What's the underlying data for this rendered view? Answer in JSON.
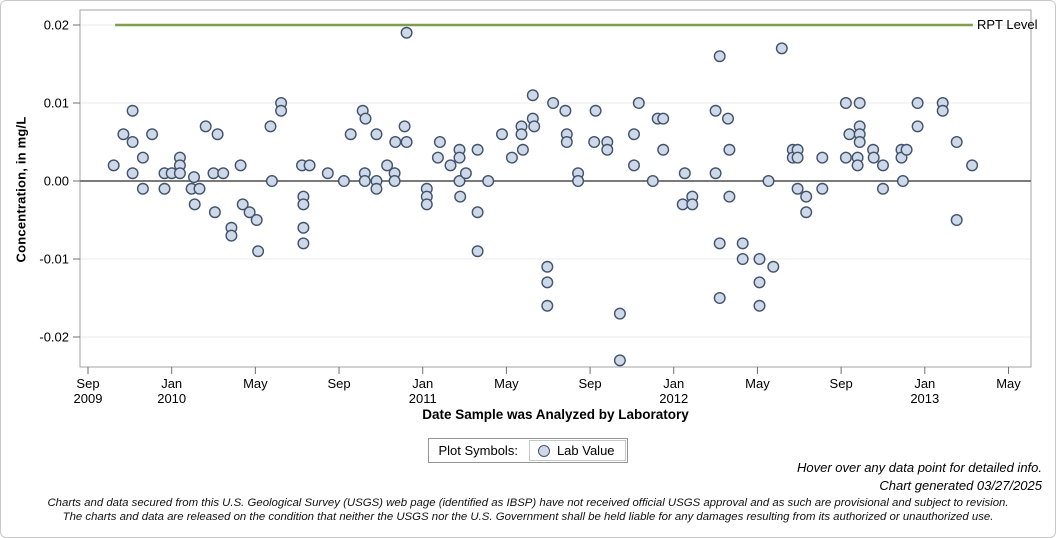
{
  "chart_data": {
    "type": "scatter",
    "title": "",
    "xlabel": "Date Sample was Analyzed by Laboratory",
    "ylabel": "Concentration, in mg/L",
    "ylim": [
      -0.024,
      0.022
    ],
    "x_domain": [
      "2009-08-20",
      "2013-06-01"
    ],
    "grid": "horizontal-light",
    "legend_position": "bottom-center",
    "yticks": [
      {
        "v": 0.02,
        "label": "0.02"
      },
      {
        "v": 0.01,
        "label": "0.01"
      },
      {
        "v": 0.0,
        "label": "0.00"
      },
      {
        "v": -0.01,
        "label": "-0.01"
      },
      {
        "v": -0.02,
        "label": "-0.02"
      }
    ],
    "xticks": [
      {
        "m": 0,
        "line1": "Sep",
        "line2": "2009"
      },
      {
        "m": 4,
        "line1": "Jan",
        "line2": "2010"
      },
      {
        "m": 8,
        "line1": "May",
        "line2": ""
      },
      {
        "m": 12,
        "line1": "Sep",
        "line2": ""
      },
      {
        "m": 16,
        "line1": "Jan",
        "line2": "2011"
      },
      {
        "m": 20,
        "line1": "May",
        "line2": ""
      },
      {
        "m": 24,
        "line1": "Sep",
        "line2": ""
      },
      {
        "m": 28,
        "line1": "Jan",
        "line2": "2012"
      },
      {
        "m": 32,
        "line1": "May",
        "line2": ""
      },
      {
        "m": 36,
        "line1": "Sep",
        "line2": ""
      },
      {
        "m": 40,
        "line1": "Jan",
        "line2": "2013"
      },
      {
        "m": 44,
        "line1": "May",
        "line2": ""
      }
    ],
    "rpt": {
      "value": 0.02,
      "label": "RPT Level",
      "start": "2009-10-10",
      "end": "2013-03-10",
      "color": "#7d9e4d"
    },
    "zero_line": {
      "value": 0.0,
      "color": "#7a7a7a"
    },
    "marker": {
      "shape": "circle",
      "fill": "#cdd9e9",
      "stroke": "#43526b"
    },
    "series": [
      {
        "name": "Lab Value",
        "points": [
          [
            "2009-10-08",
            0.002
          ],
          [
            "2009-10-22",
            0.006
          ],
          [
            "2009-11-05",
            0.009
          ],
          [
            "2009-11-05",
            0.005
          ],
          [
            "2009-11-05",
            0.001
          ],
          [
            "2009-11-20",
            0.003
          ],
          [
            "2009-11-20",
            -0.001
          ],
          [
            "2009-12-03",
            0.006
          ],
          [
            "2009-12-21",
            0.001
          ],
          [
            "2009-12-21",
            -0.001
          ],
          [
            "2010-01-01",
            0.001
          ],
          [
            "2010-01-13",
            0.003
          ],
          [
            "2010-01-13",
            0.002
          ],
          [
            "2010-01-13",
            0.001
          ],
          [
            "2010-01-30",
            -0.001
          ],
          [
            "2010-02-03",
            0.0005
          ],
          [
            "2010-02-04",
            -0.003
          ],
          [
            "2010-02-11",
            -0.001
          ],
          [
            "2010-02-20",
            0.007
          ],
          [
            "2010-03-01",
            0.001
          ],
          [
            "2010-03-03",
            -0.004
          ],
          [
            "2010-03-07",
            0.006
          ],
          [
            "2010-03-15",
            0.001
          ],
          [
            "2010-03-27",
            -0.006
          ],
          [
            "2010-03-27",
            -0.007
          ],
          [
            "2010-04-10",
            0.002
          ],
          [
            "2010-04-13",
            -0.003
          ],
          [
            "2010-04-23",
            -0.004
          ],
          [
            "2010-05-03",
            -0.005
          ],
          [
            "2010-05-05",
            -0.009
          ],
          [
            "2010-05-23",
            0.007
          ],
          [
            "2010-05-25",
            0.0
          ],
          [
            "2010-06-08",
            0.01
          ],
          [
            "2010-06-08",
            0.009
          ],
          [
            "2010-07-08",
            0.002
          ],
          [
            "2010-07-10",
            -0.002
          ],
          [
            "2010-07-10",
            -0.003
          ],
          [
            "2010-07-10",
            -0.006
          ],
          [
            "2010-07-10",
            -0.008
          ],
          [
            "2010-07-19",
            0.002
          ],
          [
            "2010-08-15",
            0.001
          ],
          [
            "2010-09-08",
            0.0
          ],
          [
            "2010-09-18",
            0.006
          ],
          [
            "2010-10-05",
            0.009
          ],
          [
            "2010-10-08",
            0.001
          ],
          [
            "2010-10-08",
            0.0
          ],
          [
            "2010-10-09",
            0.008
          ],
          [
            "2010-10-25",
            0.006
          ],
          [
            "2010-10-25",
            0.0
          ],
          [
            "2010-10-25",
            -0.001
          ],
          [
            "2010-11-10",
            0.002
          ],
          [
            "2010-11-21",
            0.001
          ],
          [
            "2010-11-21",
            0.0
          ],
          [
            "2010-11-22",
            0.005
          ],
          [
            "2010-12-05",
            0.007
          ],
          [
            "2010-12-08",
            0.019
          ],
          [
            "2010-12-08",
            0.005
          ],
          [
            "2011-01-07",
            -0.001
          ],
          [
            "2011-01-07",
            -0.002
          ],
          [
            "2011-01-07",
            -0.003
          ],
          [
            "2011-01-23",
            0.003
          ],
          [
            "2011-01-26",
            0.005
          ],
          [
            "2011-02-11",
            0.002
          ],
          [
            "2011-02-24",
            0.004
          ],
          [
            "2011-02-24",
            0.003
          ],
          [
            "2011-02-24",
            0.0
          ],
          [
            "2011-02-25",
            -0.002
          ],
          [
            "2011-03-03",
            0.001
          ],
          [
            "2011-03-20",
            0.004
          ],
          [
            "2011-03-20",
            -0.004
          ],
          [
            "2011-03-20",
            -0.009
          ],
          [
            "2011-04-05",
            0.0
          ],
          [
            "2011-04-25",
            0.006
          ],
          [
            "2011-05-09",
            0.003
          ],
          [
            "2011-05-23",
            0.007
          ],
          [
            "2011-05-23",
            0.006
          ],
          [
            "2011-05-25",
            0.004
          ],
          [
            "2011-06-09",
            0.011
          ],
          [
            "2011-06-09",
            0.008
          ],
          [
            "2011-06-11",
            0.007
          ],
          [
            "2011-06-30",
            -0.011
          ],
          [
            "2011-06-30",
            -0.013
          ],
          [
            "2011-06-30",
            -0.016
          ],
          [
            "2011-07-08",
            0.01
          ],
          [
            "2011-07-26",
            0.009
          ],
          [
            "2011-07-28",
            0.006
          ],
          [
            "2011-07-28",
            0.005
          ],
          [
            "2011-08-14",
            0.001
          ],
          [
            "2011-08-14",
            0.0
          ],
          [
            "2011-09-07",
            0.005
          ],
          [
            "2011-09-09",
            0.009
          ],
          [
            "2011-09-26",
            0.005
          ],
          [
            "2011-09-26",
            0.004
          ],
          [
            "2011-10-14",
            -0.017
          ],
          [
            "2011-10-14",
            -0.023
          ],
          [
            "2011-11-04",
            0.006
          ],
          [
            "2011-11-04",
            0.002
          ],
          [
            "2011-11-11",
            0.01
          ],
          [
            "2011-12-01",
            0.0
          ],
          [
            "2011-12-08",
            0.008
          ],
          [
            "2011-12-16",
            0.008
          ],
          [
            "2011-12-16",
            0.004
          ],
          [
            "2012-01-14",
            -0.003
          ],
          [
            "2012-01-17",
            0.001
          ],
          [
            "2012-01-28",
            -0.002
          ],
          [
            "2012-01-28",
            -0.003
          ],
          [
            "2012-03-01",
            0.009
          ],
          [
            "2012-03-01",
            0.001
          ],
          [
            "2012-03-07",
            0.016
          ],
          [
            "2012-03-07",
            -0.008
          ],
          [
            "2012-03-07",
            -0.015
          ],
          [
            "2012-03-19",
            0.008
          ],
          [
            "2012-03-21",
            0.004
          ],
          [
            "2012-03-21",
            -0.002
          ],
          [
            "2012-04-10",
            -0.008
          ],
          [
            "2012-04-10",
            -0.01
          ],
          [
            "2012-05-04",
            -0.01
          ],
          [
            "2012-05-04",
            -0.013
          ],
          [
            "2012-05-04",
            -0.016
          ],
          [
            "2012-05-17",
            0.0
          ],
          [
            "2012-05-24",
            -0.011
          ],
          [
            "2012-06-06",
            0.017
          ],
          [
            "2012-06-22",
            0.004
          ],
          [
            "2012-06-22",
            0.003
          ],
          [
            "2012-06-29",
            0.004
          ],
          [
            "2012-06-29",
            0.003
          ],
          [
            "2012-06-29",
            -0.001
          ],
          [
            "2012-07-11",
            -0.002
          ],
          [
            "2012-07-11",
            -0.004
          ],
          [
            "2012-08-04",
            0.003
          ],
          [
            "2012-08-04",
            -0.001
          ],
          [
            "2012-09-08",
            0.01
          ],
          [
            "2012-09-08",
            0.003
          ],
          [
            "2012-09-13",
            0.006
          ],
          [
            "2012-09-25",
            0.003
          ],
          [
            "2012-09-25",
            0.002
          ],
          [
            "2012-09-28",
            0.01
          ],
          [
            "2012-09-28",
            0.007
          ],
          [
            "2012-09-28",
            0.006
          ],
          [
            "2012-09-28",
            0.005
          ],
          [
            "2012-10-17",
            0.004
          ],
          [
            "2012-10-18",
            0.003
          ],
          [
            "2012-11-01",
            0.002
          ],
          [
            "2012-11-01",
            -0.001
          ],
          [
            "2012-11-28",
            0.004
          ],
          [
            "2012-11-28",
            0.003
          ],
          [
            "2012-11-30",
            0.0
          ],
          [
            "2012-12-05",
            0.004
          ],
          [
            "2012-12-21",
            0.01
          ],
          [
            "2012-12-21",
            0.007
          ],
          [
            "2013-01-27",
            0.01
          ],
          [
            "2013-01-27",
            0.009
          ],
          [
            "2013-02-17",
            0.005
          ],
          [
            "2013-02-17",
            -0.005
          ],
          [
            "2013-03-09",
            0.002
          ]
        ]
      }
    ]
  },
  "legend": {
    "title": "Plot Symbols:",
    "entry_label": "Lab Value"
  },
  "notes": {
    "hover": "Hover over any data point for detailed info.",
    "generated": "Chart generated 03/27/2025"
  },
  "footer": {
    "line1": "Charts and data secured from this U.S. Geological Survey (USGS) web page (identified as IBSP) have not received official USGS approval and as such are provisional and subject to revision.",
    "line2": "The charts and data are released on the condition that neither the USGS nor the U.S. Government shall be held liable for any damages resulting from its authorized or unauthorized use."
  }
}
